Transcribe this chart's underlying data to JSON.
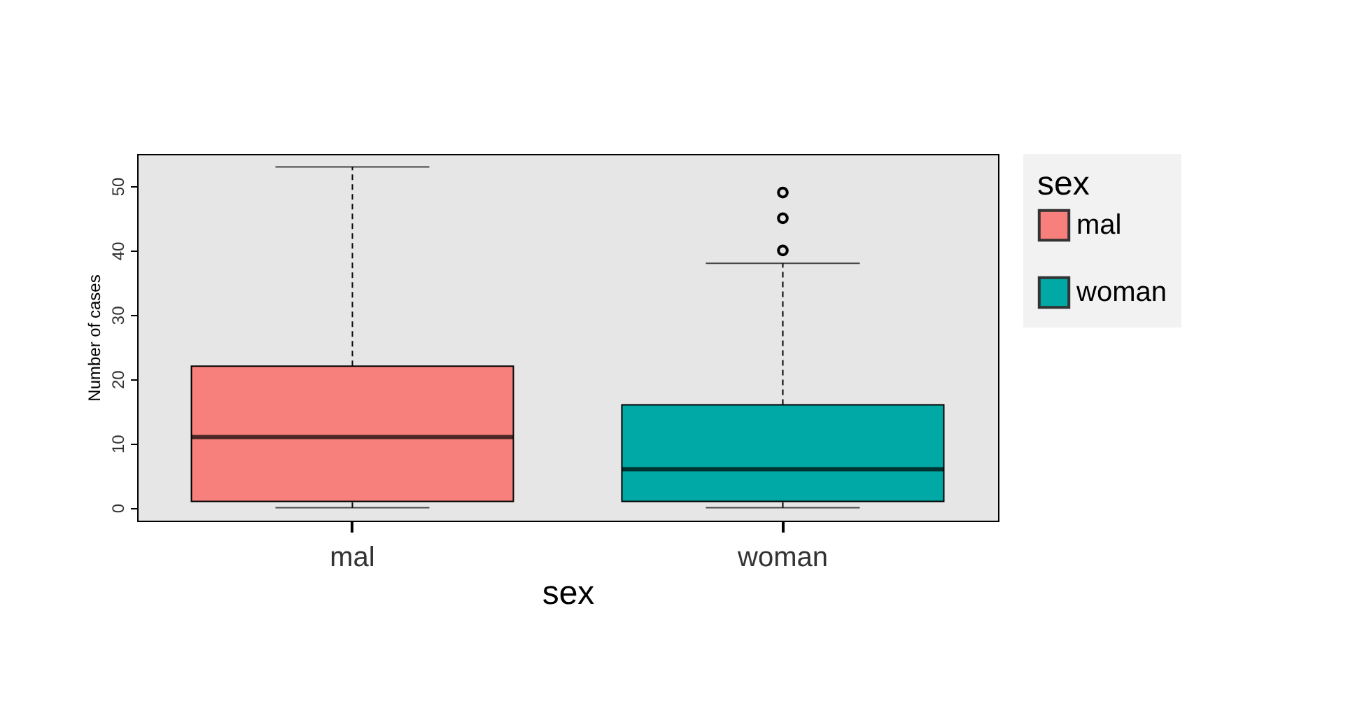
{
  "chart_data": {
    "type": "box",
    "xlabel": "sex",
    "ylabel": "Number of cases",
    "legend_title": "sex",
    "legend": "right",
    "grid": false,
    "categories": [
      "mal",
      "woman"
    ],
    "series": [
      {
        "name": "mal",
        "color": "#f8807c",
        "boxes": [
          {
            "low": 0,
            "q1": 1,
            "median": 11,
            "q3": 22,
            "high": 53
          },
          null
        ]
      },
      {
        "name": "woman",
        "color": "#00a8a6",
        "boxes": [
          null,
          {
            "low": 0,
            "q1": 1,
            "median": 6,
            "q3": 16,
            "high": 38,
            "outliers": [
              40,
              45,
              49
            ]
          }
        ]
      }
    ],
    "ylim": [
      -2,
      55
    ],
    "yticks": [
      0,
      10,
      20,
      30,
      40,
      50
    ]
  }
}
